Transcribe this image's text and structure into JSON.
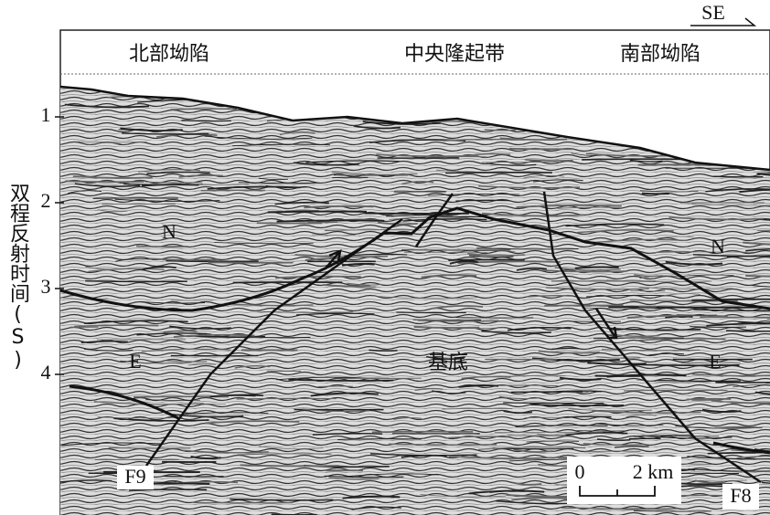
{
  "direction": "SE",
  "regions": [
    "北部坳陷",
    "中央隆起带",
    "南部坳陷"
  ],
  "axis": {
    "label": "双程反射时间(S)",
    "ticks": [
      1,
      2,
      3,
      4
    ]
  },
  "units": [
    {
      "label": "N"
    },
    {
      "label": "N"
    },
    {
      "label": "E"
    },
    {
      "label": "E"
    },
    {
      "label": "基底"
    }
  ],
  "faults": [
    "F9",
    "F8"
  ],
  "scale": {
    "start": "0",
    "end": "2 km"
  }
}
